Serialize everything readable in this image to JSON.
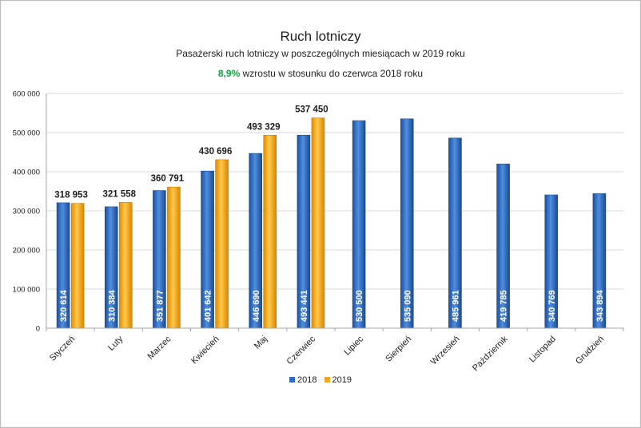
{
  "chart_data": {
    "type": "bar",
    "title": "Ruch lotniczy",
    "subtitle": "Pasażerski ruch lotniczy w poszczególnych miesiącach w 2019 roku",
    "note": {
      "highlight": "8,9%",
      "text": " wzrostu w stosunku do czerwca 2018 roku"
    },
    "categories": [
      "Styczeń",
      "Luty",
      "Marzec",
      "Kwiecień",
      "Maj",
      "Czerwiec",
      "Lipiec",
      "Sierpień",
      "Wrzesień",
      "Październik",
      "Listopad",
      "Grudzień"
    ],
    "series": [
      {
        "name": "2018",
        "color": "#2f6bc2",
        "values": [
          320614,
          310384,
          351877,
          401642,
          446690,
          493441,
          530500,
          535090,
          485961,
          419785,
          340769,
          343894
        ],
        "labels": [
          "320 614",
          "310 384",
          "351 877",
          "401 642",
          "446 690",
          "493 441",
          "530 500",
          "535 090",
          "485 961",
          "419 785",
          "340 769",
          "343 894"
        ]
      },
      {
        "name": "2019",
        "color": "#f2a81e",
        "values": [
          318953,
          321558,
          360791,
          430696,
          493329,
          537450,
          null,
          null,
          null,
          null,
          null,
          null
        ],
        "labels": [
          "318 953",
          "321 558",
          "360 791",
          "430 696",
          "493 329",
          "537 450",
          "",
          "",
          "",
          "",
          "",
          ""
        ]
      }
    ],
    "ylim": [
      0,
      600000
    ],
    "yticks": [
      0,
      100000,
      200000,
      300000,
      400000,
      500000,
      600000
    ],
    "ytick_labels": [
      "0",
      "100 000",
      "200 000",
      "300 000",
      "400 000",
      "500 000",
      "600 000"
    ],
    "grid": true,
    "legend": "bottom-center"
  }
}
